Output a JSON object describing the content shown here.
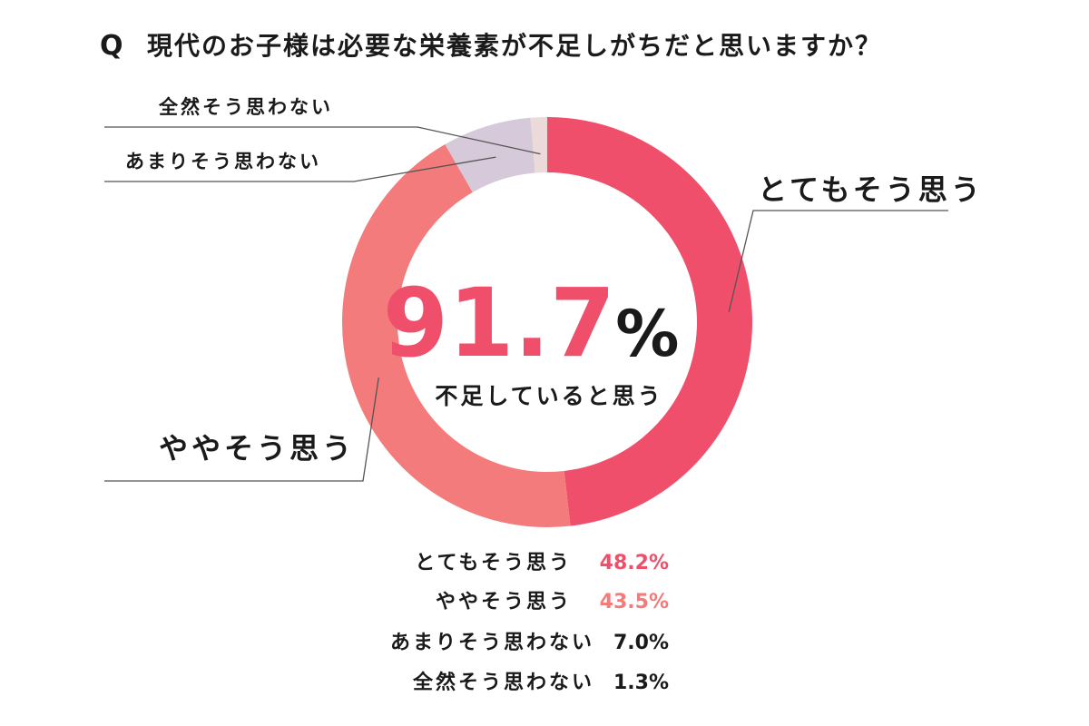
{
  "chart_data": {
    "type": "pie",
    "title_prefix": "Q",
    "title": "現代のお子様は必要な栄養素が不足しがちだと思いますか？",
    "categories": [
      "とてもそう思う",
      "ややそう思う",
      "あまりそう思わない",
      "全然そう思わない"
    ],
    "values": [
      48.2,
      43.5,
      7.0,
      1.3
    ],
    "value_labels": [
      "48.2%",
      "43.5%",
      "7.0%",
      "1.3%"
    ],
    "colors": [
      "#ef4f6b",
      "#f37b7b",
      "#d6c9d9",
      "#ecd9d9"
    ],
    "center": {
      "number": "91.7",
      "percent_sign": "%",
      "caption": "不足していると思う",
      "number_color": "#ef4f6b"
    },
    "legend_placement": "bottom",
    "donut": true
  }
}
